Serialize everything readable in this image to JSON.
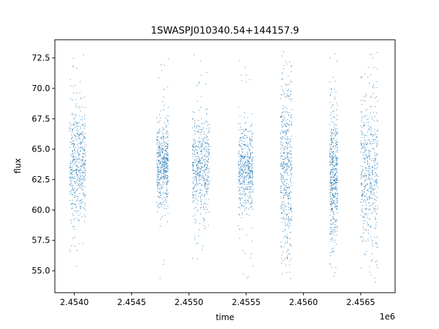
{
  "chart_data": {
    "type": "scatter",
    "title": "1SWASPJ010340.54+144157.9",
    "xlabel": "time",
    "ylabel": "flux",
    "x_offset_label": "1e6",
    "xlim": [
      2.45383,
      2.4568
    ],
    "ylim": [
      53.2,
      74.0
    ],
    "x_ticks": [
      2.454,
      2.4545,
      2.455,
      2.4555,
      2.456,
      2.4565
    ],
    "x_tick_labels": [
      "2.4540",
      "2.4545",
      "2.4550",
      "2.4555",
      "2.4560",
      "2.4565"
    ],
    "y_ticks": [
      55.0,
      57.5,
      60.0,
      62.5,
      65.0,
      67.5,
      70.0,
      72.5
    ],
    "y_tick_labels": [
      "55.0",
      "57.5",
      "60.0",
      "62.5",
      "65.0",
      "67.5",
      "70.0",
      "72.5"
    ],
    "grid": false,
    "legend": "none",
    "marker_color": "#1f77b4",
    "clusters": [
      {
        "x_start": 2.45396,
        "x_end": 2.4541,
        "y_center": 63.5,
        "y_spread": 2.4,
        "y_min": 55.2,
        "y_max": 73.0
      },
      {
        "x_start": 2.45472,
        "x_end": 2.45482,
        "y_center": 63.7,
        "y_spread": 1.7,
        "y_min": 54.0,
        "y_max": 72.7
      },
      {
        "x_start": 2.45503,
        "x_end": 2.45518,
        "y_center": 63.5,
        "y_spread": 2.0,
        "y_min": 54.5,
        "y_max": 72.8
      },
      {
        "x_start": 2.45543,
        "x_end": 2.45556,
        "y_center": 63.3,
        "y_spread": 1.8,
        "y_min": 54.2,
        "y_max": 72.3
      },
      {
        "x_start": 2.4558,
        "x_end": 2.4559,
        "y_center": 63.2,
        "y_spread": 3.6,
        "y_min": 53.8,
        "y_max": 73.1
      },
      {
        "x_start": 2.45623,
        "x_end": 2.4563,
        "y_center": 63.0,
        "y_spread": 2.7,
        "y_min": 54.3,
        "y_max": 73.0
      },
      {
        "x_start": 2.4565,
        "x_end": 2.45665,
        "y_center": 63.1,
        "y_spread": 3.1,
        "y_min": 53.9,
        "y_max": 73.0
      }
    ]
  }
}
